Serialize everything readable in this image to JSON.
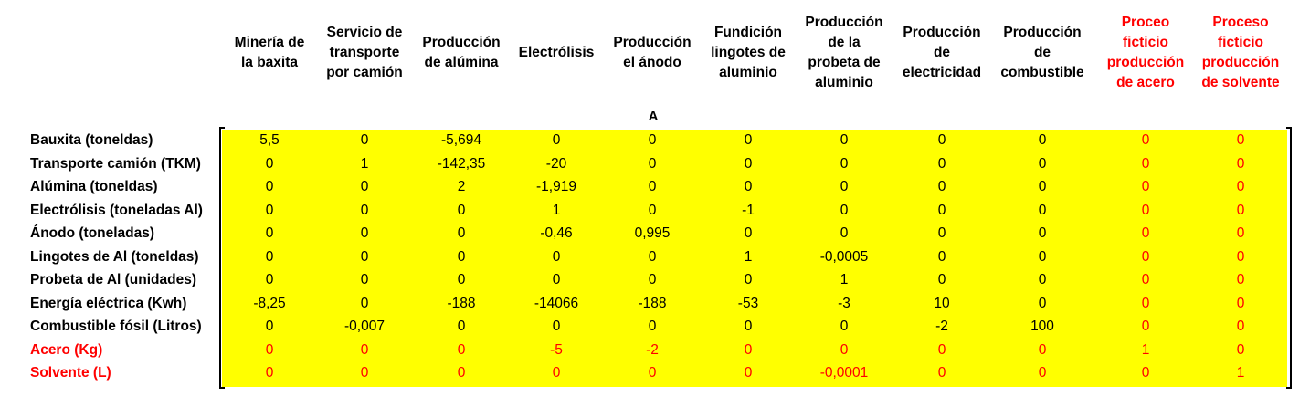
{
  "columns": [
    {
      "label": "Minería de la baxita",
      "lines": [
        "Minería de",
        "la baxita"
      ],
      "red": false
    },
    {
      "label": "Servicio de transporte por camión",
      "lines": [
        "Servicio de",
        "transporte",
        "por camión"
      ],
      "red": false
    },
    {
      "label": "Producción de alúmina",
      "lines": [
        "Producción",
        "de alúmina"
      ],
      "red": false
    },
    {
      "label": "Electrólisis",
      "lines": [
        "Electrólisis"
      ],
      "red": false
    },
    {
      "label": "Producción el ánodo",
      "lines": [
        "Producción",
        "el ánodo"
      ],
      "red": false
    },
    {
      "label": "Fundición lingotes de aluminio",
      "lines": [
        "Fundición",
        "lingotes de",
        "aluminio"
      ],
      "red": false
    },
    {
      "label": "Producción de la probeta de aluminio",
      "lines": [
        "Producción",
        "de la",
        "probeta de",
        "aluminio"
      ],
      "red": false
    },
    {
      "label": "Producción de electricidad",
      "lines": [
        "Producción",
        "de",
        "electricidad"
      ],
      "red": false
    },
    {
      "label": "Producción de combustible",
      "lines": [
        "Producción",
        "de",
        "combustible"
      ],
      "red": false
    },
    {
      "label": "Proceo ficticio producción de acero",
      "lines": [
        "Proceo",
        "ficticio",
        "producción",
        "de acero"
      ],
      "red": true
    },
    {
      "label": "Proceso ficticio producción de solvente",
      "lines": [
        "Proceso",
        "ficticio",
        "producción",
        "de solvente"
      ],
      "red": true
    }
  ],
  "matrix_label": "A",
  "rows": [
    {
      "label": "Bauxita (toneldas)",
      "red": false,
      "values": [
        "5,5",
        "0",
        "-5,694",
        "0",
        "0",
        "0",
        "0",
        "0",
        "0",
        "0",
        "0"
      ]
    },
    {
      "label": "Transporte camión (TKM)",
      "red": false,
      "values": [
        "0",
        "1",
        "-142,35",
        "-20",
        "0",
        "0",
        "0",
        "0",
        "0",
        "0",
        "0"
      ]
    },
    {
      "label": "Alúmina (toneldas)",
      "red": false,
      "values": [
        "0",
        "0",
        "2",
        "-1,919",
        "0",
        "0",
        "0",
        "0",
        "0",
        "0",
        "0"
      ]
    },
    {
      "label": "Electrólisis (toneladas Al)",
      "red": false,
      "values": [
        "0",
        "0",
        "0",
        "1",
        "0",
        "-1",
        "0",
        "0",
        "0",
        "0",
        "0"
      ]
    },
    {
      "label": "Ánodo (toneladas)",
      "red": false,
      "values": [
        "0",
        "0",
        "0",
        "-0,46",
        "0,995",
        "0",
        "0",
        "0",
        "0",
        "0",
        "0"
      ]
    },
    {
      "label": "Lingotes de Al (toneldas)",
      "red": false,
      "values": [
        "0",
        "0",
        "0",
        "0",
        "0",
        "1",
        "-0,0005",
        "0",
        "0",
        "0",
        "0"
      ]
    },
    {
      "label": "Probeta de Al (unidades)",
      "red": false,
      "values": [
        "0",
        "0",
        "0",
        "0",
        "0",
        "0",
        "1",
        "0",
        "0",
        "0",
        "0"
      ]
    },
    {
      "label": "Energía eléctrica (Kwh)",
      "red": false,
      "values": [
        "-8,25",
        "0",
        "-188",
        "-14066",
        "-188",
        "-53",
        "-3",
        "10",
        "0",
        "0",
        "0"
      ]
    },
    {
      "label": "Combustible fósil (Litros)",
      "red": false,
      "values": [
        "0",
        "-0,007",
        "0",
        "0",
        "0",
        "0",
        "0",
        "-2",
        "100",
        "0",
        "0"
      ]
    },
    {
      "label": "Acero (Kg)",
      "red": true,
      "values": [
        "0",
        "0",
        "0",
        "-5",
        "-2",
        "0",
        "0",
        "0",
        "0",
        "1",
        "0"
      ]
    },
    {
      "label": "Solvente (L)",
      "red": true,
      "values": [
        "0",
        "0",
        "0",
        "0",
        "0",
        "0",
        "-0,0001",
        "0",
        "0",
        "0",
        "1"
      ]
    }
  ]
}
